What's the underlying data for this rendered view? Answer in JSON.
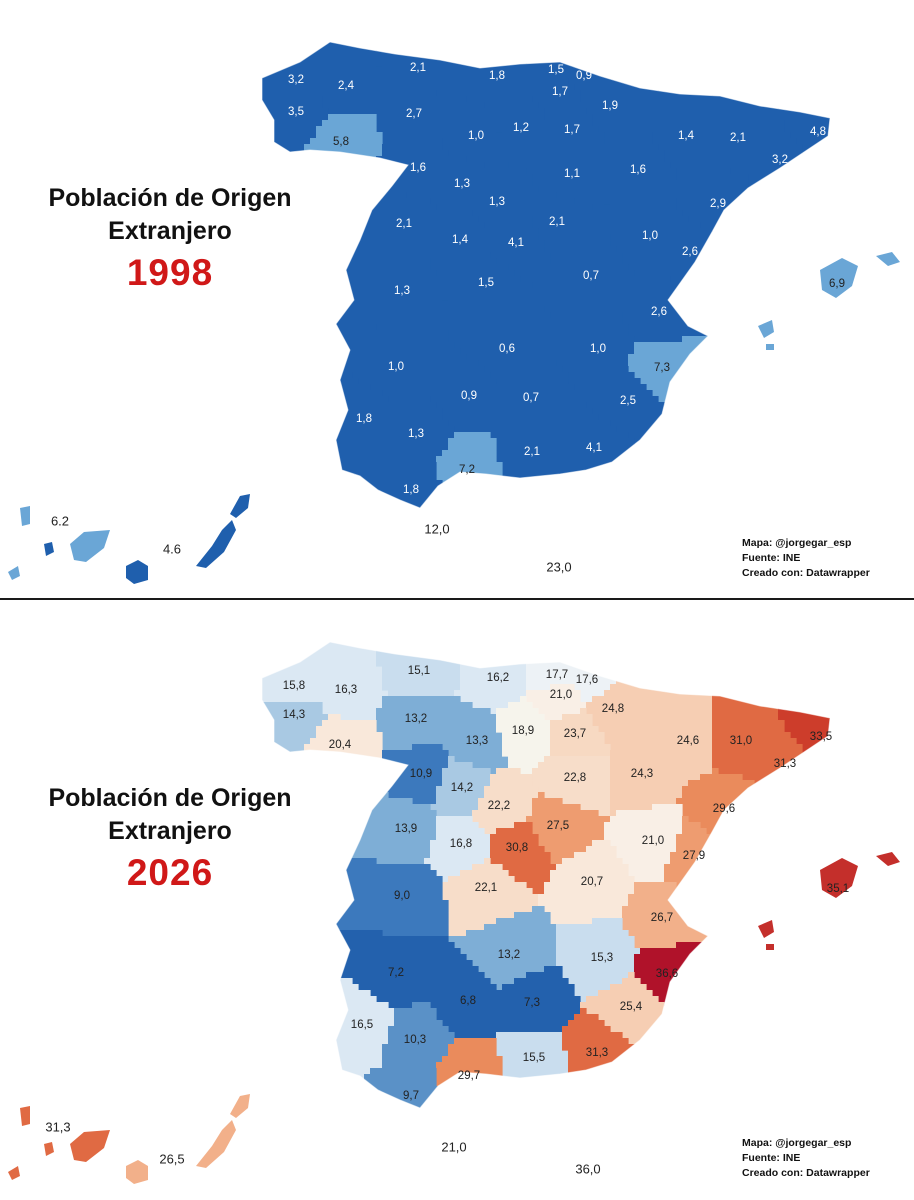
{
  "colors": {
    "blue_dark": "#1f5fad",
    "blue_light": "#6aa6d6",
    "red_title": "#d01818"
  },
  "maps": [
    {
      "title_line1": "Población de Origen",
      "title_line2": "Extranjero",
      "year": "1998",
      "credits": [
        "Mapa: @jorgegar_esp",
        "Fuente: INE",
        "Creado con: Datawrapper"
      ],
      "provinces": [
        {
          "value": "3,2",
          "color": "#1f5fad"
        },
        {
          "value": "2,4",
          "color": "#1f5fad"
        },
        {
          "value": "2,1",
          "color": "#1f5fad"
        },
        {
          "value": "1,8",
          "color": "#1f5fad"
        },
        {
          "value": "1,5",
          "color": "#1f5fad"
        },
        {
          "value": "0,9",
          "color": "#1f5fad"
        },
        {
          "value": "1,7",
          "color": "#1f5fad"
        },
        {
          "value": "3,5",
          "color": "#1f5fad"
        },
        {
          "value": "2,7",
          "color": "#1f5fad"
        },
        {
          "value": "1,9",
          "color": "#1f5fad"
        },
        {
          "value": "5,8",
          "color": "#6aa6d6"
        },
        {
          "value": "1,0",
          "color": "#1f5fad"
        },
        {
          "value": "1,2",
          "color": "#1f5fad"
        },
        {
          "value": "1,7",
          "color": "#1f5fad"
        },
        {
          "value": "1,4",
          "color": "#1f5fad"
        },
        {
          "value": "2,1",
          "color": "#1f5fad"
        },
        {
          "value": "4,8",
          "color": "#1f5fad"
        },
        {
          "value": "3,2",
          "color": "#1f5fad"
        },
        {
          "value": "1,6",
          "color": "#1f5fad"
        },
        {
          "value": "1,1",
          "color": "#1f5fad"
        },
        {
          "value": "1,6",
          "color": "#1f5fad"
        },
        {
          "value": "1,3",
          "color": "#1f5fad"
        },
        {
          "value": "1,3",
          "color": "#1f5fad"
        },
        {
          "value": "2,9",
          "color": "#1f5fad"
        },
        {
          "value": "2,1",
          "color": "#1f5fad"
        },
        {
          "value": "2,1",
          "color": "#1f5fad"
        },
        {
          "value": "1,4",
          "color": "#1f5fad"
        },
        {
          "value": "4,1",
          "color": "#1f5fad"
        },
        {
          "value": "1,0",
          "color": "#1f5fad"
        },
        {
          "value": "2,6",
          "color": "#1f5fad"
        },
        {
          "value": "1,3",
          "color": "#1f5fad"
        },
        {
          "value": "1,5",
          "color": "#1f5fad"
        },
        {
          "value": "0,7",
          "color": "#1f5fad"
        },
        {
          "value": "6,9",
          "color": "#6aa6d6"
        },
        {
          "value": "2,6",
          "color": "#1f5fad"
        },
        {
          "value": "0,6",
          "color": "#1f5fad"
        },
        {
          "value": "1,0",
          "color": "#1f5fad"
        },
        {
          "value": "1,0",
          "color": "#1f5fad"
        },
        {
          "value": "7,3",
          "color": "#6aa6d6"
        },
        {
          "value": "0,9",
          "color": "#1f5fad"
        },
        {
          "value": "0,7",
          "color": "#1f5fad"
        },
        {
          "value": "2,5",
          "color": "#1f5fad"
        },
        {
          "value": "1,8",
          "color": "#1f5fad"
        },
        {
          "value": "1,3",
          "color": "#1f5fad"
        },
        {
          "value": "2,1",
          "color": "#1f5fad"
        },
        {
          "value": "4,1",
          "color": "#1f5fad"
        },
        {
          "value": "7,2",
          "color": "#6aa6d6"
        },
        {
          "value": "1,8",
          "color": "#1f5fad"
        }
      ],
      "external_labels": [
        "6.2",
        "4.6",
        "12,0",
        "23,0"
      ]
    },
    {
      "title_line1": "Población de Origen",
      "title_line2": "Extranjero",
      "year": "2026",
      "credits": [
        "Mapa: @jorgegar_esp",
        "Fuente: INE",
        "Creado con: Datawrapper"
      ],
      "provinces": [
        {
          "value": "15,8",
          "color": "#dbe8f3"
        },
        {
          "value": "16,3",
          "color": "#dbe8f3"
        },
        {
          "value": "15,1",
          "color": "#c9ddee"
        },
        {
          "value": "16,2",
          "color": "#dbe8f3"
        },
        {
          "value": "17,7",
          "color": "#edf2f6"
        },
        {
          "value": "17,6",
          "color": "#edf2f6"
        },
        {
          "value": "21,0",
          "color": "#f9efe6"
        },
        {
          "value": "14,3",
          "color": "#a9c9e3"
        },
        {
          "value": "13,2",
          "color": "#7eaed6"
        },
        {
          "value": "24,8",
          "color": "#f6ceb3"
        },
        {
          "value": "13,3",
          "color": "#7eaed6"
        },
        {
          "value": "18,9",
          "color": "#f6f4ec"
        },
        {
          "value": "23,7",
          "color": "#f7d9c2"
        },
        {
          "value": "24,6",
          "color": "#f6ceb3"
        },
        {
          "value": "31,0",
          "color": "#e06a43"
        },
        {
          "value": "33,5",
          "color": "#cd3d2b"
        },
        {
          "value": "20,4",
          "color": "#f9e8da"
        },
        {
          "value": "31,3",
          "color": "#e06a43"
        },
        {
          "value": "10,9",
          "color": "#3c79bd"
        },
        {
          "value": "22,8",
          "color": "#f7ddc9"
        },
        {
          "value": "24,3",
          "color": "#f6ceb3"
        },
        {
          "value": "14,2",
          "color": "#a9c9e3"
        },
        {
          "value": "22,2",
          "color": "#f7ddc9"
        },
        {
          "value": "29,6",
          "color": "#ea8b5c"
        },
        {
          "value": "13,9",
          "color": "#7eaed6"
        },
        {
          "value": "27,5",
          "color": "#ee9c70"
        },
        {
          "value": "16,8",
          "color": "#dbe8f3"
        },
        {
          "value": "30,8",
          "color": "#e06a43"
        },
        {
          "value": "21,0",
          "color": "#f9efe6"
        },
        {
          "value": "27,9",
          "color": "#ee9c70"
        },
        {
          "value": "22,1",
          "color": "#f7ddc9"
        },
        {
          "value": "20,7",
          "color": "#f9e8da"
        },
        {
          "value": "9,0",
          "color": "#3c79bd"
        },
        {
          "value": "35,1",
          "color": "#c42f2b"
        },
        {
          "value": "26,7",
          "color": "#f2b08a"
        },
        {
          "value": "13,2",
          "color": "#7eaed6"
        },
        {
          "value": "15,3",
          "color": "#c9ddee"
        },
        {
          "value": "7,2",
          "color": "#2361ad"
        },
        {
          "value": "36,6",
          "color": "#b0122a"
        },
        {
          "value": "6,8",
          "color": "#2361ad"
        },
        {
          "value": "7,3",
          "color": "#2361ad"
        },
        {
          "value": "25,4",
          "color": "#f6ceb3"
        },
        {
          "value": "16,5",
          "color": "#dbe8f3"
        },
        {
          "value": "10,3",
          "color": "#5a91c7"
        },
        {
          "value": "15,5",
          "color": "#c9ddee"
        },
        {
          "value": "31,3",
          "color": "#e06a43"
        },
        {
          "value": "29,7",
          "color": "#ea8b5c"
        },
        {
          "value": "9,7",
          "color": "#5a91c7"
        }
      ],
      "external_labels": [
        "31,3",
        "26,5",
        "21,0",
        "36,0"
      ]
    }
  ]
}
